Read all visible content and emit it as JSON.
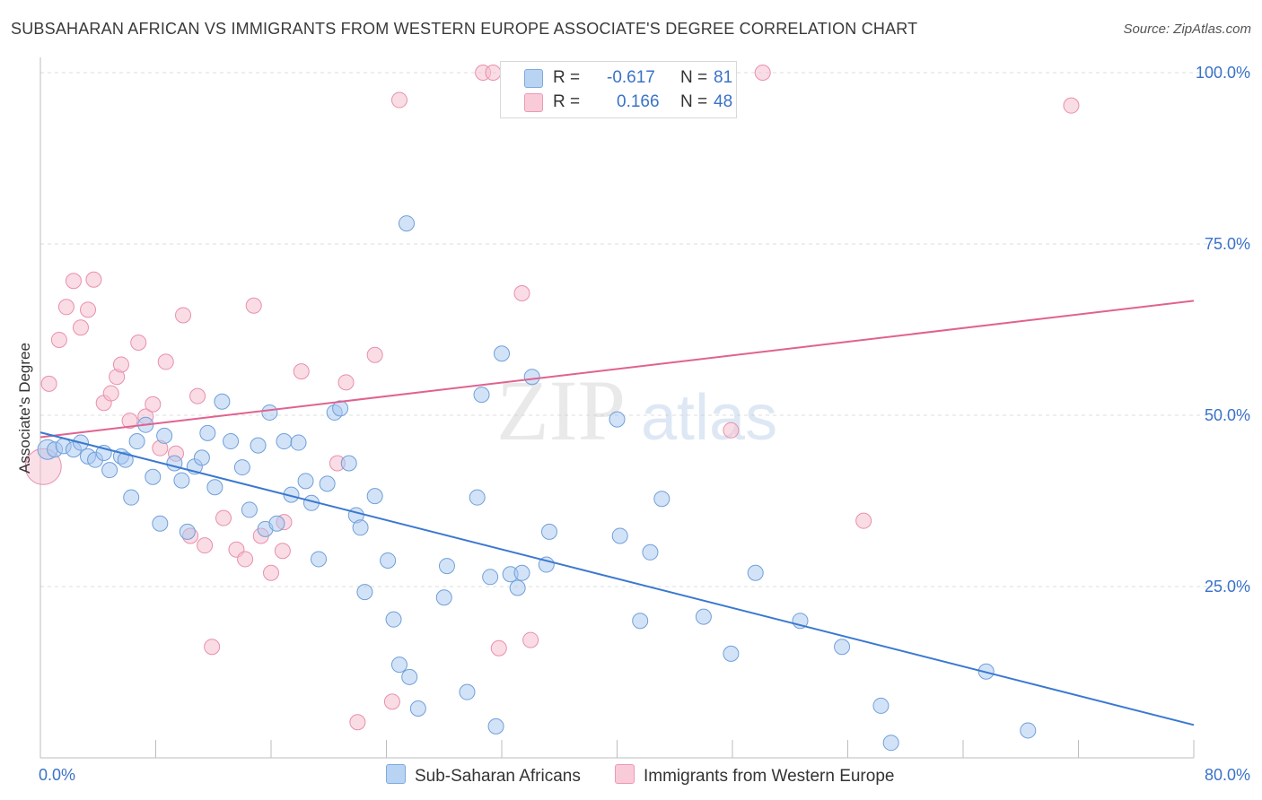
{
  "title": "SUBSAHARAN AFRICAN VS IMMIGRANTS FROM WESTERN EUROPE ASSOCIATE'S DEGREE CORRELATION CHART",
  "source": "Source: ZipAtlas.com",
  "watermark": {
    "zip": "ZIP",
    "atlas": "atlas"
  },
  "stats": {
    "rows": [
      {
        "r_label": "R =",
        "r_value": "-0.617",
        "n_label": "N =",
        "n_value": "81",
        "color": "#a8c8f0"
      },
      {
        "r_label": "R =",
        "r_value": "0.166",
        "n_label": "N =",
        "n_value": "48",
        "color": "#f6b8cb"
      }
    ]
  },
  "legend": {
    "items": [
      {
        "label": "Sub-Saharan Africans",
        "color": "#a8c8f0"
      },
      {
        "label": "Immigrants from Western Europe",
        "color": "#f6b8cb"
      }
    ]
  },
  "colors": {
    "blue_fill": "#a8c8f0",
    "blue_stroke": "#6f9fda",
    "blue_line": "#3a78d0",
    "pink_fill": "#f6c0d0",
    "pink_stroke": "#e890ac",
    "pink_line": "#e0628f",
    "tick_label": "#3a72c8",
    "grid": "#dcdcdc"
  },
  "chart_data": {
    "type": "scatter",
    "title": "SUBSAHARAN AFRICAN VS IMMIGRANTS FROM WESTERN EUROPE ASSOCIATE'S DEGREE CORRELATION CHART",
    "xlabel": "",
    "ylabel": "Associate's Degree",
    "xlim": [
      0,
      80
    ],
    "ylim": [
      0,
      102
    ],
    "x_tick_labels": [
      "0.0%",
      "80.0%"
    ],
    "y_ticks": [
      25,
      50,
      75,
      100
    ],
    "y_tick_labels": [
      "25.0%",
      "50.0%",
      "75.0%",
      "100.0%"
    ],
    "grid": true,
    "legend_position": "bottom",
    "series": [
      {
        "name": "Sub-Saharan Africans",
        "r": -0.617,
        "n": 81,
        "trend": {
          "x": [
            0,
            80
          ],
          "y": [
            47.5,
            4.8
          ]
        },
        "points": [
          {
            "x": 0.5,
            "y": 45
          },
          {
            "x": 1.0,
            "y": 45
          },
          {
            "x": 1.6,
            "y": 45.5
          },
          {
            "x": 2.3,
            "y": 45
          },
          {
            "x": 2.8,
            "y": 46
          },
          {
            "x": 3.3,
            "y": 44
          },
          {
            "x": 3.8,
            "y": 43.5
          },
          {
            "x": 4.4,
            "y": 44.5
          },
          {
            "x": 4.8,
            "y": 42
          },
          {
            "x": 5.6,
            "y": 44
          },
          {
            "x": 5.9,
            "y": 43.5
          },
          {
            "x": 6.3,
            "y": 38
          },
          {
            "x": 6.7,
            "y": 46.2
          },
          {
            "x": 7.3,
            "y": 48.6
          },
          {
            "x": 7.8,
            "y": 41
          },
          {
            "x": 8.3,
            "y": 34.2
          },
          {
            "x": 8.6,
            "y": 47
          },
          {
            "x": 9.3,
            "y": 43
          },
          {
            "x": 9.8,
            "y": 40.5
          },
          {
            "x": 10.2,
            "y": 33
          },
          {
            "x": 10.7,
            "y": 42.5
          },
          {
            "x": 11.2,
            "y": 43.8
          },
          {
            "x": 11.6,
            "y": 47.4
          },
          {
            "x": 12.1,
            "y": 39.5
          },
          {
            "x": 12.6,
            "y": 52
          },
          {
            "x": 13.2,
            "y": 46.2
          },
          {
            "x": 14.0,
            "y": 42.4
          },
          {
            "x": 14.5,
            "y": 36.2
          },
          {
            "x": 15.1,
            "y": 45.6
          },
          {
            "x": 15.6,
            "y": 33.4
          },
          {
            "x": 15.9,
            "y": 50.4
          },
          {
            "x": 16.4,
            "y": 34.2
          },
          {
            "x": 16.9,
            "y": 46.2
          },
          {
            "x": 17.4,
            "y": 38.4
          },
          {
            "x": 17.9,
            "y": 46
          },
          {
            "x": 18.4,
            "y": 40.4
          },
          {
            "x": 18.8,
            "y": 37.2
          },
          {
            "x": 19.3,
            "y": 29
          },
          {
            "x": 19.9,
            "y": 40
          },
          {
            "x": 20.4,
            "y": 50.4
          },
          {
            "x": 20.8,
            "y": 51
          },
          {
            "x": 21.4,
            "y": 43
          },
          {
            "x": 21.9,
            "y": 35.4
          },
          {
            "x": 22.2,
            "y": 33.6
          },
          {
            "x": 22.5,
            "y": 24.2
          },
          {
            "x": 23.2,
            "y": 38.2
          },
          {
            "x": 24.1,
            "y": 28.8
          },
          {
            "x": 24.5,
            "y": 20.2
          },
          {
            "x": 24.9,
            "y": 13.6
          },
          {
            "x": 25.6,
            "y": 11.8
          },
          {
            "x": 26.2,
            "y": 7.2
          },
          {
            "x": 25.4,
            "y": 78
          },
          {
            "x": 28.0,
            "y": 23.4
          },
          {
            "x": 28.2,
            "y": 28
          },
          {
            "x": 29.6,
            "y": 9.6
          },
          {
            "x": 30.3,
            "y": 38
          },
          {
            "x": 30.6,
            "y": 53
          },
          {
            "x": 31.2,
            "y": 26.4
          },
          {
            "x": 31.6,
            "y": 4.6
          },
          {
            "x": 32.0,
            "y": 59
          },
          {
            "x": 32.6,
            "y": 26.8
          },
          {
            "x": 33.1,
            "y": 24.8
          },
          {
            "x": 33.4,
            "y": 27
          },
          {
            "x": 34.1,
            "y": 55.6
          },
          {
            "x": 35.1,
            "y": 28.2
          },
          {
            "x": 35.3,
            "y": 33
          },
          {
            "x": 40.0,
            "y": 49.4
          },
          {
            "x": 40.2,
            "y": 32.4
          },
          {
            "x": 41.6,
            "y": 20
          },
          {
            "x": 42.3,
            "y": 30
          },
          {
            "x": 43.1,
            "y": 37.8
          },
          {
            "x": 46.0,
            "y": 20.6
          },
          {
            "x": 47.9,
            "y": 15.2
          },
          {
            "x": 49.6,
            "y": 27
          },
          {
            "x": 52.7,
            "y": 20
          },
          {
            "x": 55.6,
            "y": 16.2
          },
          {
            "x": 58.3,
            "y": 7.6
          },
          {
            "x": 59.0,
            "y": 2.2
          },
          {
            "x": 65.6,
            "y": 12.6
          },
          {
            "x": 68.5,
            "y": 4
          }
        ]
      },
      {
        "name": "Immigrants from Western Europe",
        "r": 0.166,
        "n": 48,
        "trend": {
          "x": [
            0,
            80
          ],
          "y": [
            46.8,
            66.7
          ]
        },
        "points": [
          {
            "x": 0.2,
            "y": 42.5
          },
          {
            "x": 0.6,
            "y": 54.6
          },
          {
            "x": 1.3,
            "y": 61
          },
          {
            "x": 1.8,
            "y": 65.8
          },
          {
            "x": 2.3,
            "y": 69.6
          },
          {
            "x": 2.8,
            "y": 62.8
          },
          {
            "x": 3.3,
            "y": 65.4
          },
          {
            "x": 3.7,
            "y": 69.8
          },
          {
            "x": 4.4,
            "y": 51.8
          },
          {
            "x": 4.9,
            "y": 53.2
          },
          {
            "x": 5.3,
            "y": 55.6
          },
          {
            "x": 5.6,
            "y": 57.4
          },
          {
            "x": 6.2,
            "y": 49.2
          },
          {
            "x": 6.8,
            "y": 60.6
          },
          {
            "x": 7.3,
            "y": 49.8
          },
          {
            "x": 7.8,
            "y": 51.6
          },
          {
            "x": 8.3,
            "y": 45.2
          },
          {
            "x": 8.7,
            "y": 57.8
          },
          {
            "x": 9.4,
            "y": 44.4
          },
          {
            "x": 9.9,
            "y": 64.6
          },
          {
            "x": 10.4,
            "y": 32.4
          },
          {
            "x": 10.9,
            "y": 52.8
          },
          {
            "x": 11.4,
            "y": 31
          },
          {
            "x": 11.9,
            "y": 16.2
          },
          {
            "x": 12.7,
            "y": 35
          },
          {
            "x": 13.6,
            "y": 30.4
          },
          {
            "x": 14.2,
            "y": 29
          },
          {
            "x": 14.8,
            "y": 66
          },
          {
            "x": 15.3,
            "y": 32.4
          },
          {
            "x": 16.0,
            "y": 27
          },
          {
            "x": 16.9,
            "y": 34.4
          },
          {
            "x": 16.8,
            "y": 30.2
          },
          {
            "x": 18.1,
            "y": 56.4
          },
          {
            "x": 20.6,
            "y": 43
          },
          {
            "x": 21.2,
            "y": 54.8
          },
          {
            "x": 22.0,
            "y": 5.2
          },
          {
            "x": 23.2,
            "y": 58.8
          },
          {
            "x": 24.9,
            "y": 96
          },
          {
            "x": 24.4,
            "y": 8.2
          },
          {
            "x": 30.7,
            "y": 100
          },
          {
            "x": 31.4,
            "y": 100
          },
          {
            "x": 31.8,
            "y": 16
          },
          {
            "x": 33.4,
            "y": 67.8
          },
          {
            "x": 34.0,
            "y": 17.2
          },
          {
            "x": 47.9,
            "y": 47.8
          },
          {
            "x": 50.1,
            "y": 100
          },
          {
            "x": 57.1,
            "y": 34.6
          },
          {
            "x": 71.5,
            "y": 95.2
          }
        ]
      }
    ]
  }
}
